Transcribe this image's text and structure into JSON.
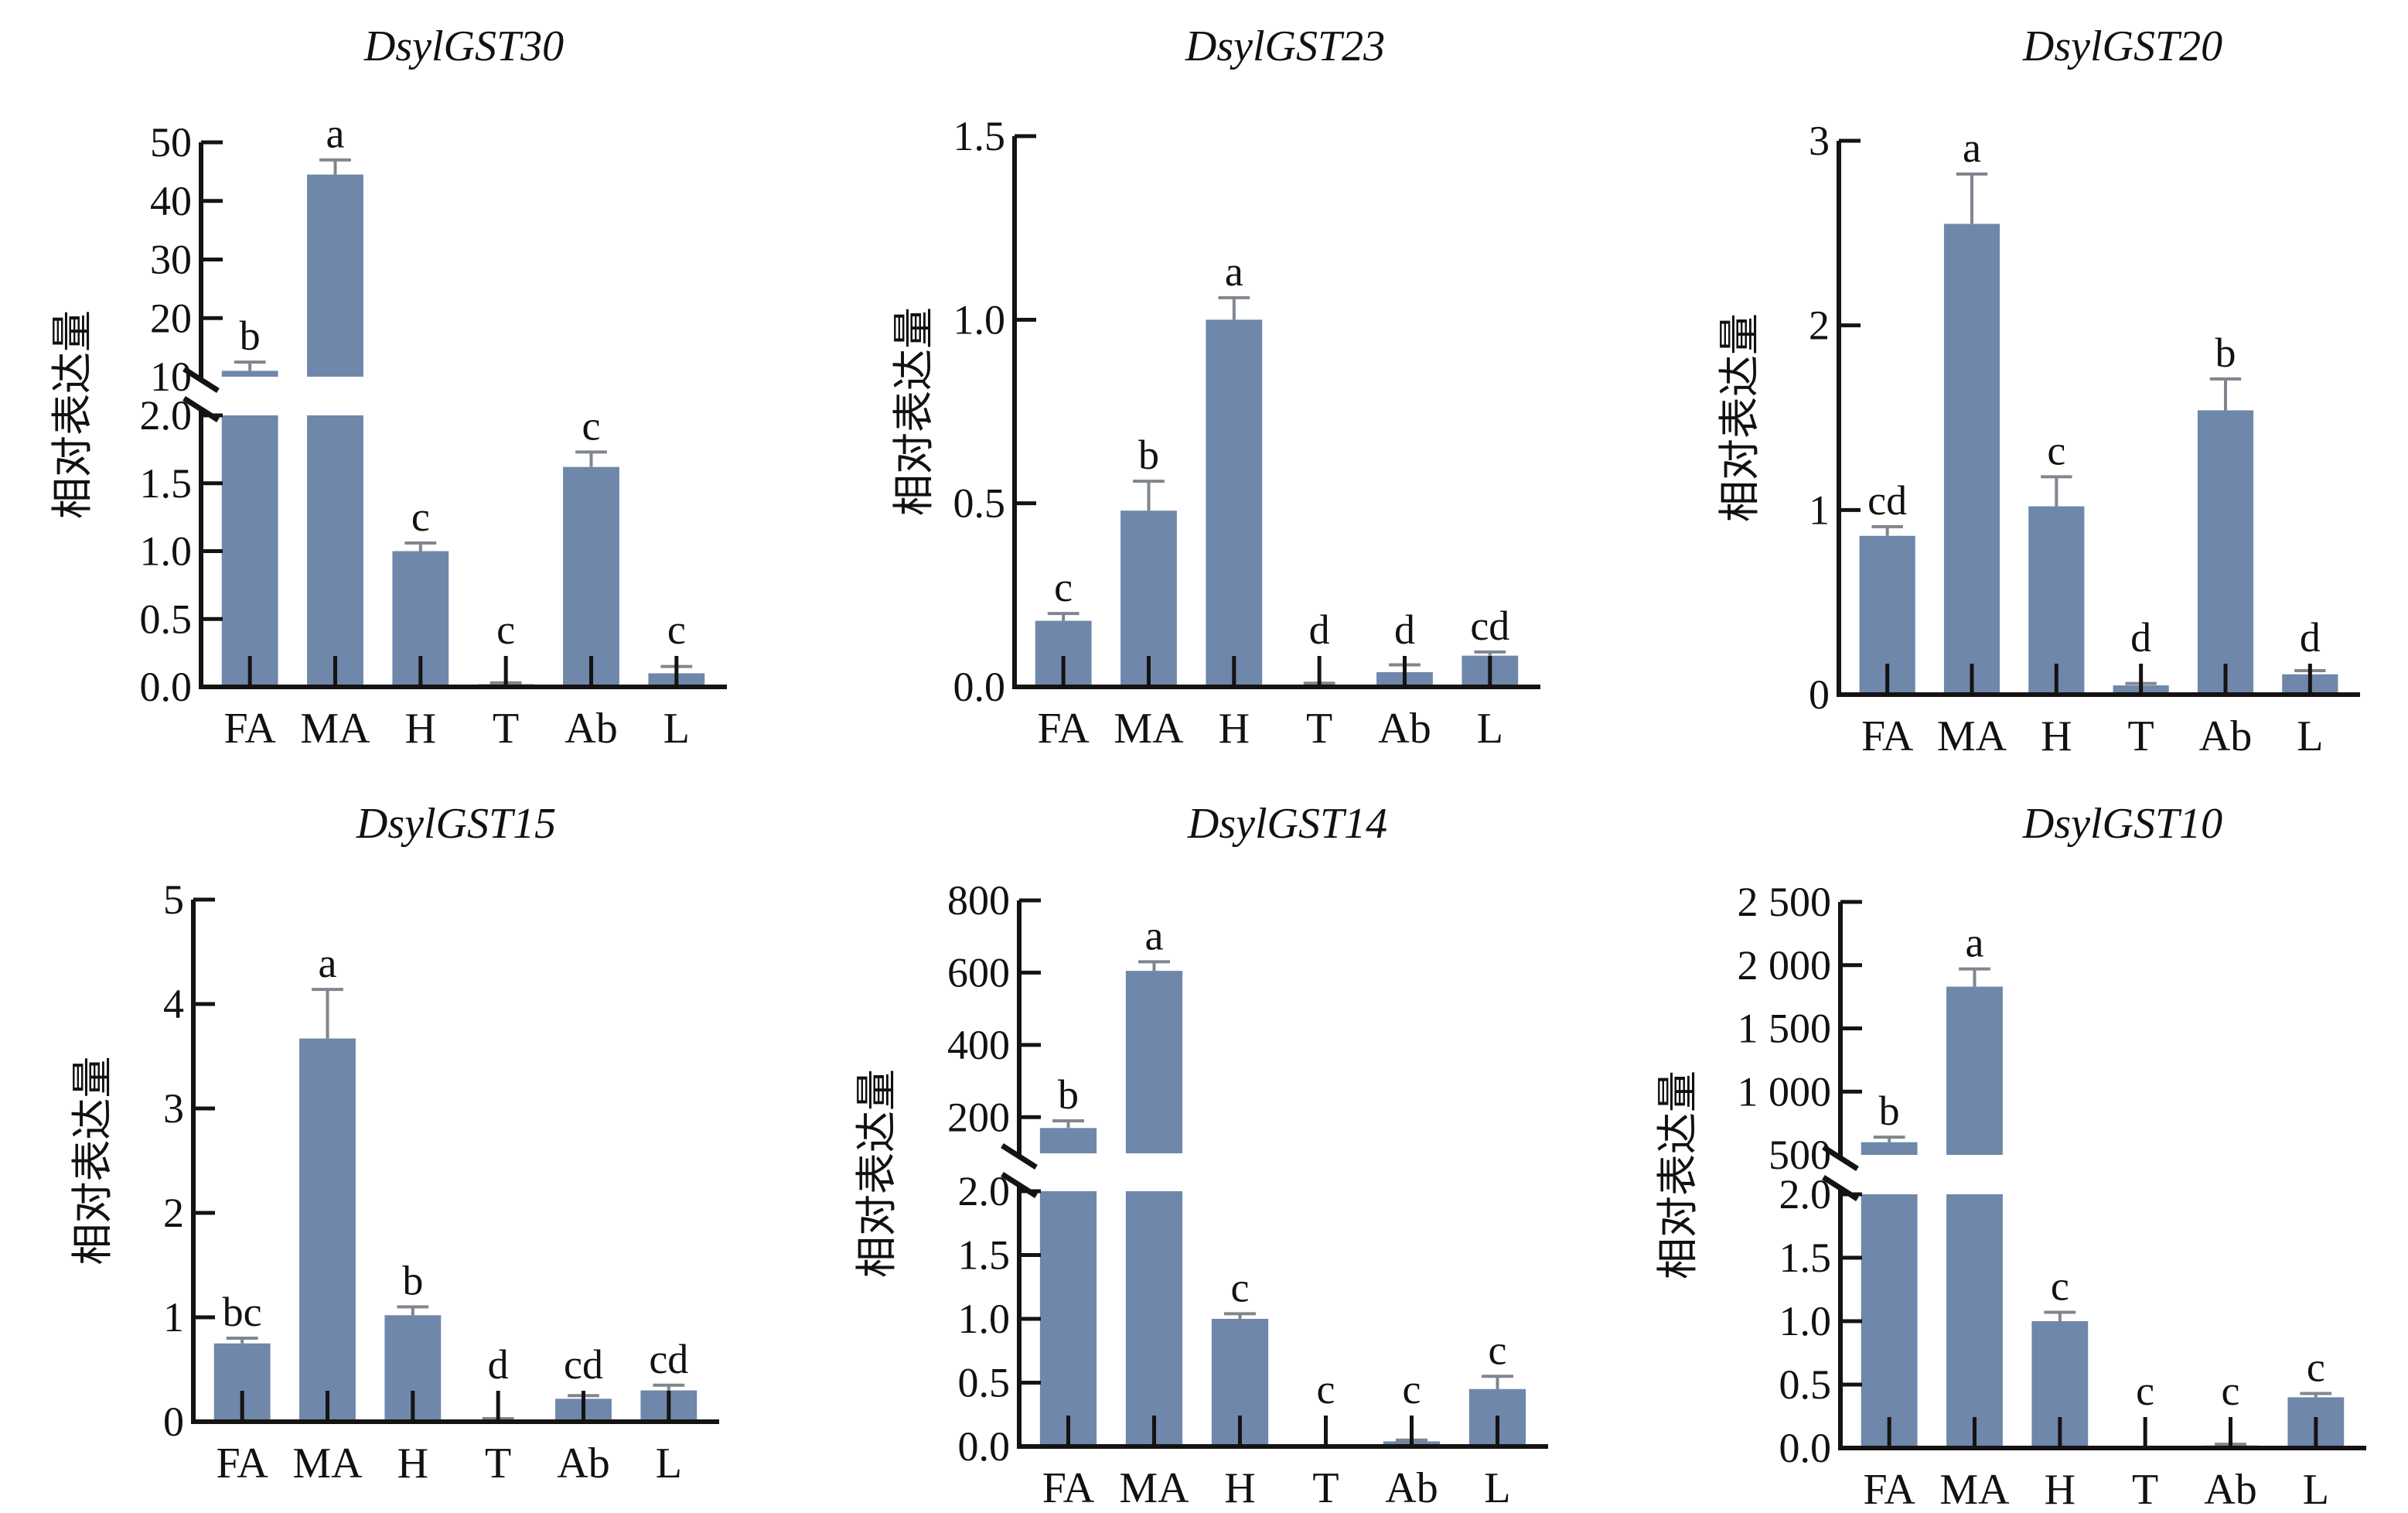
{
  "chart_data": [
    {
      "type": "bar",
      "title": "DsylGST30",
      "xlabel": "",
      "ylabel": "相对表达量",
      "categories": [
        "FA",
        "MA",
        "H",
        "T",
        "Ab",
        "L"
      ],
      "values": [
        11.0,
        44.5,
        1.0,
        0.02,
        1.62,
        0.1
      ],
      "error_upper": [
        12.5,
        47.0,
        1.06,
        0.03,
        1.73,
        0.15
      ],
      "significance": [
        "b",
        "a",
        "c",
        "c",
        "c",
        "c"
      ],
      "axis_break": true,
      "lower_range": [
        0,
        2.0
      ],
      "lower_ticks": [
        "0.0",
        "0.5",
        "1.0",
        "1.5",
        "2.0"
      ],
      "upper_range": [
        10,
        50
      ],
      "upper_ticks": [
        "10",
        "20",
        "30",
        "40",
        "50"
      ],
      "grid": false
    },
    {
      "type": "bar",
      "title": "DsylGST23",
      "xlabel": "",
      "ylabel": "相对表达量",
      "categories": [
        "FA",
        "MA",
        "H",
        "T",
        "Ab",
        "L"
      ],
      "values": [
        0.18,
        0.48,
        1.0,
        0.005,
        0.04,
        0.085
      ],
      "error_upper": [
        0.2,
        0.56,
        1.06,
        0.01,
        0.06,
        0.095
      ],
      "significance": [
        "c",
        "b",
        "a",
        "d",
        "d",
        "cd"
      ],
      "axis_break": false,
      "ylim": [
        0,
        1.5
      ],
      "ticks": [
        "0.0",
        "0.5",
        "1.0",
        "1.5"
      ],
      "grid": false
    },
    {
      "type": "bar",
      "title": "DsylGST20",
      "xlabel": "",
      "ylabel": "相对表达量",
      "categories": [
        "FA",
        "MA",
        "H",
        "T",
        "Ab",
        "L"
      ],
      "values": [
        0.86,
        2.55,
        1.02,
        0.05,
        1.54,
        0.11
      ],
      "error_upper": [
        0.91,
        2.82,
        1.18,
        0.06,
        1.71,
        0.13
      ],
      "significance": [
        "cd",
        "a",
        "c",
        "d",
        "b",
        "d"
      ],
      "axis_break": false,
      "ylim": [
        0,
        3
      ],
      "ticks": [
        "0",
        "1",
        "2",
        "3"
      ],
      "grid": false
    },
    {
      "type": "bar",
      "title": "DsylGST15",
      "xlabel": "",
      "ylabel": "相对表达量",
      "categories": [
        "FA",
        "MA",
        "H",
        "T",
        "Ab",
        "L"
      ],
      "values": [
        0.75,
        3.67,
        1.02,
        0.02,
        0.22,
        0.3
      ],
      "error_upper": [
        0.8,
        4.14,
        1.1,
        0.03,
        0.25,
        0.35
      ],
      "significance": [
        "bc",
        "a",
        "b",
        "d",
        "cd",
        "cd"
      ],
      "axis_break": false,
      "ylim": [
        0,
        5
      ],
      "ticks": [
        "0",
        "1",
        "2",
        "3",
        "4",
        "5"
      ],
      "grid": false
    },
    {
      "type": "bar",
      "title": "DsylGST14",
      "xlabel": "",
      "ylabel": "相对表达量",
      "categories": [
        "FA",
        "MA",
        "H",
        "T",
        "Ab",
        "L"
      ],
      "values": [
        170,
        605,
        1.0,
        0.0,
        0.04,
        0.45
      ],
      "error_upper": [
        190,
        630,
        1.04,
        0.0,
        0.05,
        0.55
      ],
      "significance": [
        "b",
        "a",
        "c",
        "c",
        "c",
        "c"
      ],
      "axis_break": true,
      "lower_range": [
        0,
        2.0
      ],
      "lower_ticks": [
        "0.0",
        "0.5",
        "1.0",
        "1.5",
        "2.0"
      ],
      "upper_range": [
        100,
        800
      ],
      "upper_ticks": [
        "200",
        "400",
        "600",
        "800"
      ],
      "grid": false
    },
    {
      "type": "bar",
      "title": "DsylGST10",
      "xlabel": "",
      "ylabel": "相对表达量",
      "categories": [
        "FA",
        "MA",
        "H",
        "T",
        "Ab",
        "L"
      ],
      "values": [
        600,
        1830,
        1.0,
        0.0,
        0.02,
        0.4
      ],
      "error_upper": [
        640,
        1970,
        1.07,
        0.0,
        0.03,
        0.43
      ],
      "significance": [
        "b",
        "a",
        "c",
        "c",
        "c",
        "c"
      ],
      "axis_break": true,
      "lower_range": [
        0,
        2.0
      ],
      "lower_ticks": [
        "0.0",
        "0.5",
        "1.0",
        "1.5",
        "2.0"
      ],
      "upper_range": [
        500,
        2500
      ],
      "upper_ticks": [
        "500",
        "1 000",
        "1 500",
        "2 000",
        "2 500"
      ],
      "grid": false
    }
  ],
  "colors": {
    "bar": "#6e87ab",
    "error_bar": "#80868e",
    "axis": "#151311"
  }
}
